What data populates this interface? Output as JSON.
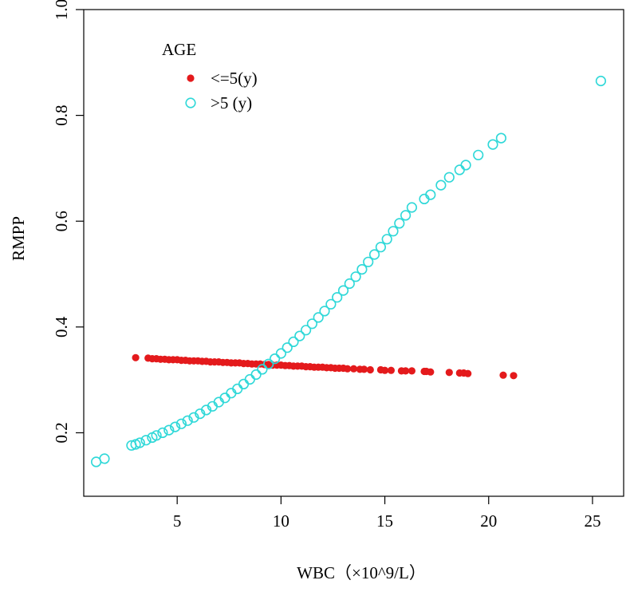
{
  "chart_data": {
    "type": "scatter",
    "xlabel": "WBC（×10^9/L）",
    "ylabel": "RMPP",
    "xlim": [
      0.5,
      26.5
    ],
    "ylim": [
      0.08,
      1.0
    ],
    "xticks": [
      5,
      10,
      15,
      20,
      25
    ],
    "yticks": [
      0.2,
      0.4,
      0.6,
      0.8,
      1.0
    ],
    "ytick_labels": [
      "0.2",
      "0.4",
      "0.6",
      "0.8",
      "1.0"
    ],
    "grid": false,
    "legend": {
      "title": "AGE",
      "position": "top-left",
      "entries": [
        {
          "label": "<=5(y)",
          "color": "#e41a1c",
          "marker": "filled-circle"
        },
        {
          "label": ">5 (y)",
          "color": "#2fd8d8",
          "marker": "open-circle"
        }
      ]
    },
    "series": [
      {
        "name": "<=5(y)",
        "color": "#e41a1c",
        "marker": "filled-circle",
        "points": [
          [
            3.0,
            0.342
          ],
          [
            3.6,
            0.341
          ],
          [
            3.8,
            0.34
          ],
          [
            4.0,
            0.34
          ],
          [
            4.2,
            0.339
          ],
          [
            4.4,
            0.339
          ],
          [
            4.6,
            0.338
          ],
          [
            4.8,
            0.338
          ],
          [
            5.0,
            0.338
          ],
          [
            5.2,
            0.337
          ],
          [
            5.4,
            0.337
          ],
          [
            5.6,
            0.336
          ],
          [
            5.8,
            0.336
          ],
          [
            6.0,
            0.336
          ],
          [
            6.2,
            0.335
          ],
          [
            6.4,
            0.335
          ],
          [
            6.6,
            0.334
          ],
          [
            6.8,
            0.334
          ],
          [
            7.0,
            0.334
          ],
          [
            7.2,
            0.333
          ],
          [
            7.4,
            0.333
          ],
          [
            7.6,
            0.332
          ],
          [
            7.8,
            0.332
          ],
          [
            8.0,
            0.332
          ],
          [
            8.2,
            0.331
          ],
          [
            8.4,
            0.331
          ],
          [
            8.6,
            0.33
          ],
          [
            8.8,
            0.33
          ],
          [
            9.0,
            0.33
          ],
          [
            9.2,
            0.329
          ],
          [
            9.4,
            0.329
          ],
          [
            9.6,
            0.328
          ],
          [
            9.8,
            0.328
          ],
          [
            10.0,
            0.328
          ],
          [
            10.2,
            0.327
          ],
          [
            10.4,
            0.327
          ],
          [
            10.6,
            0.326
          ],
          [
            10.8,
            0.326
          ],
          [
            11.0,
            0.326
          ],
          [
            11.2,
            0.325
          ],
          [
            11.4,
            0.325
          ],
          [
            11.6,
            0.324
          ],
          [
            11.8,
            0.324
          ],
          [
            12.0,
            0.324
          ],
          [
            12.2,
            0.323
          ],
          [
            12.4,
            0.323
          ],
          [
            12.6,
            0.322
          ],
          [
            12.8,
            0.322
          ],
          [
            13.0,
            0.322
          ],
          [
            13.2,
            0.321
          ],
          [
            13.5,
            0.321
          ],
          [
            13.8,
            0.32
          ],
          [
            14.0,
            0.32
          ],
          [
            14.3,
            0.319
          ],
          [
            14.8,
            0.319
          ],
          [
            15.0,
            0.318
          ],
          [
            15.3,
            0.318
          ],
          [
            15.8,
            0.317
          ],
          [
            16.0,
            0.317
          ],
          [
            16.3,
            0.317
          ],
          [
            16.9,
            0.316
          ],
          [
            17.0,
            0.316
          ],
          [
            17.2,
            0.315
          ],
          [
            18.1,
            0.314
          ],
          [
            18.6,
            0.313
          ],
          [
            18.8,
            0.313
          ],
          [
            19.0,
            0.312
          ],
          [
            20.7,
            0.309
          ],
          [
            21.2,
            0.308
          ]
        ]
      },
      {
        "name": ">5 (y)",
        "color": "#2fd8d8",
        "marker": "open-circle",
        "points": [
          [
            1.1,
            0.145
          ],
          [
            1.5,
            0.151
          ],
          [
            2.8,
            0.176
          ],
          [
            3.0,
            0.178
          ],
          [
            3.2,
            0.181
          ],
          [
            3.5,
            0.186
          ],
          [
            3.8,
            0.191
          ],
          [
            4.0,
            0.195
          ],
          [
            4.3,
            0.2
          ],
          [
            4.6,
            0.205
          ],
          [
            4.9,
            0.211
          ],
          [
            5.2,
            0.217
          ],
          [
            5.5,
            0.223
          ],
          [
            5.8,
            0.229
          ],
          [
            6.1,
            0.236
          ],
          [
            6.4,
            0.243
          ],
          [
            6.7,
            0.25
          ],
          [
            7.0,
            0.258
          ],
          [
            7.3,
            0.266
          ],
          [
            7.6,
            0.275
          ],
          [
            7.9,
            0.283
          ],
          [
            8.2,
            0.292
          ],
          [
            8.5,
            0.301
          ],
          [
            8.8,
            0.31
          ],
          [
            9.1,
            0.32
          ],
          [
            9.4,
            0.33
          ],
          [
            9.7,
            0.34
          ],
          [
            10.0,
            0.35
          ],
          [
            10.3,
            0.361
          ],
          [
            10.6,
            0.372
          ],
          [
            10.9,
            0.383
          ],
          [
            11.2,
            0.394
          ],
          [
            11.5,
            0.406
          ],
          [
            11.8,
            0.418
          ],
          [
            12.1,
            0.43
          ],
          [
            12.4,
            0.443
          ],
          [
            12.7,
            0.456
          ],
          [
            13.0,
            0.469
          ],
          [
            13.3,
            0.482
          ],
          [
            13.6,
            0.495
          ],
          [
            13.9,
            0.509
          ],
          [
            14.2,
            0.523
          ],
          [
            14.5,
            0.537
          ],
          [
            14.8,
            0.551
          ],
          [
            15.1,
            0.566
          ],
          [
            15.4,
            0.581
          ],
          [
            15.7,
            0.596
          ],
          [
            16.0,
            0.611
          ],
          [
            16.3,
            0.626
          ],
          [
            16.9,
            0.642
          ],
          [
            17.2,
            0.65
          ],
          [
            17.7,
            0.668
          ],
          [
            18.1,
            0.683
          ],
          [
            18.6,
            0.697
          ],
          [
            18.9,
            0.706
          ],
          [
            19.5,
            0.725
          ],
          [
            20.2,
            0.745
          ],
          [
            20.6,
            0.757
          ],
          [
            25.4,
            0.865
          ]
        ]
      }
    ]
  }
}
